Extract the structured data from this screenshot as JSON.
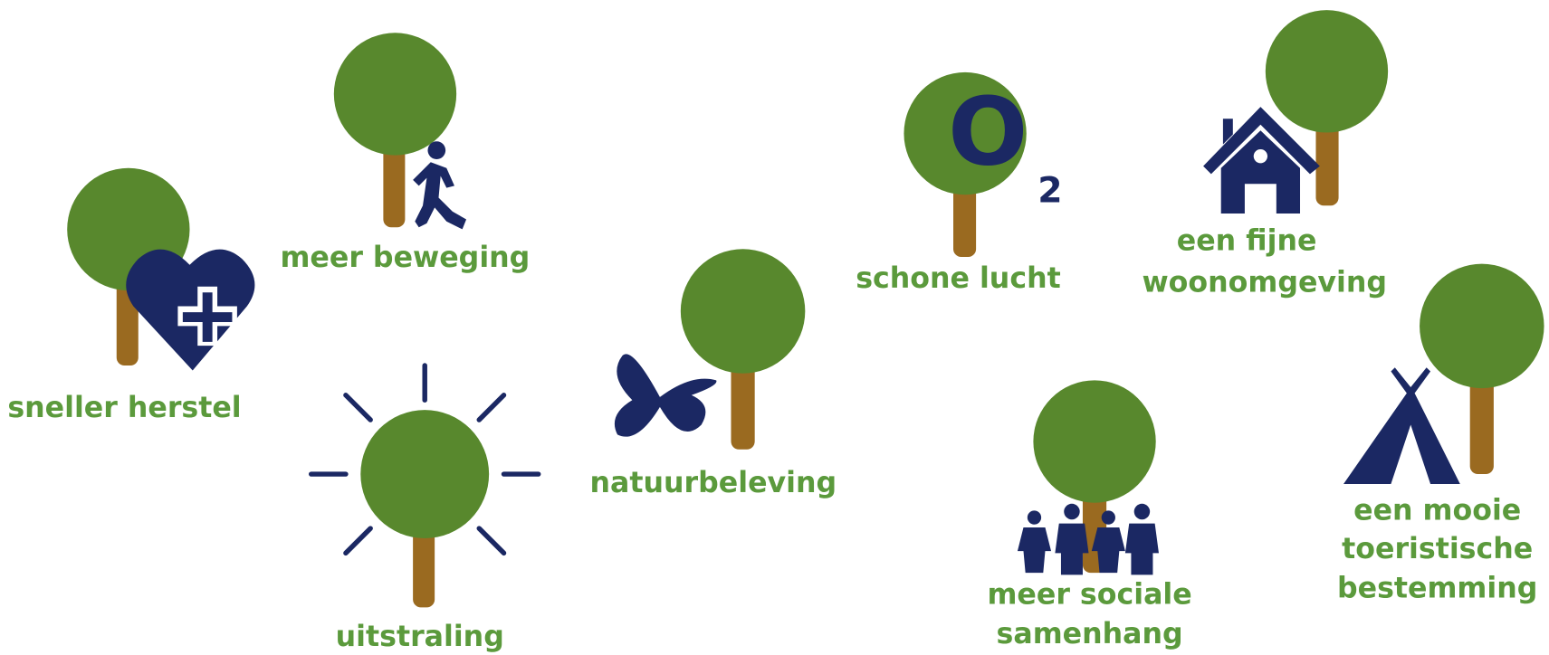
{
  "items": [
    {
      "label": [
        "sneller herstel"
      ]
    },
    {
      "label": [
        "meer beweging"
      ]
    },
    {
      "label": [
        "uitstraling"
      ]
    },
    {
      "label": [
        "natuurbeleving"
      ]
    },
    {
      "label": [
        "schone lucht"
      ],
      "icon_text": [
        "O",
        "2"
      ]
    },
    {
      "label": [
        "een fijne",
        "woonomgeving"
      ]
    },
    {
      "label": [
        "meer sociale",
        "samenhang"
      ]
    },
    {
      "label": [
        "een mooie",
        "toeristische",
        "bestemming"
      ]
    }
  ]
}
